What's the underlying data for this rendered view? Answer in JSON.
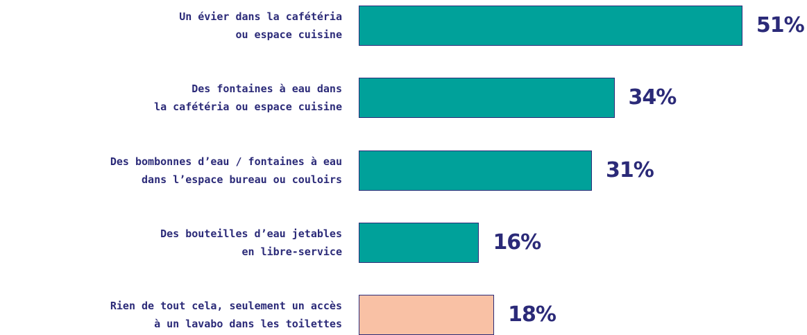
{
  "chart_data": {
    "type": "bar",
    "orientation": "horizontal",
    "categories": [
      "Un évier dans la cafétéria\nou espace cuisine",
      "Des fontaines à eau dans\nla cafétéria ou espace cuisine",
      "Des bombonnes d’eau / fontaines à eau\ndans l’espace bureau ou couloirs",
      "Des bouteilles d’eau jetables\nen libre-service",
      "Rien de tout cela, seulement un accès\nà un lavabo dans les toilettes"
    ],
    "values": [
      51,
      34,
      31,
      16,
      18
    ],
    "value_labels": [
      "51%",
      "34%",
      "31%",
      "16%",
      "18%"
    ],
    "colors": [
      "#00a19a",
      "#00a19a",
      "#00a19a",
      "#00a19a",
      "#f9c1a5"
    ]
  }
}
